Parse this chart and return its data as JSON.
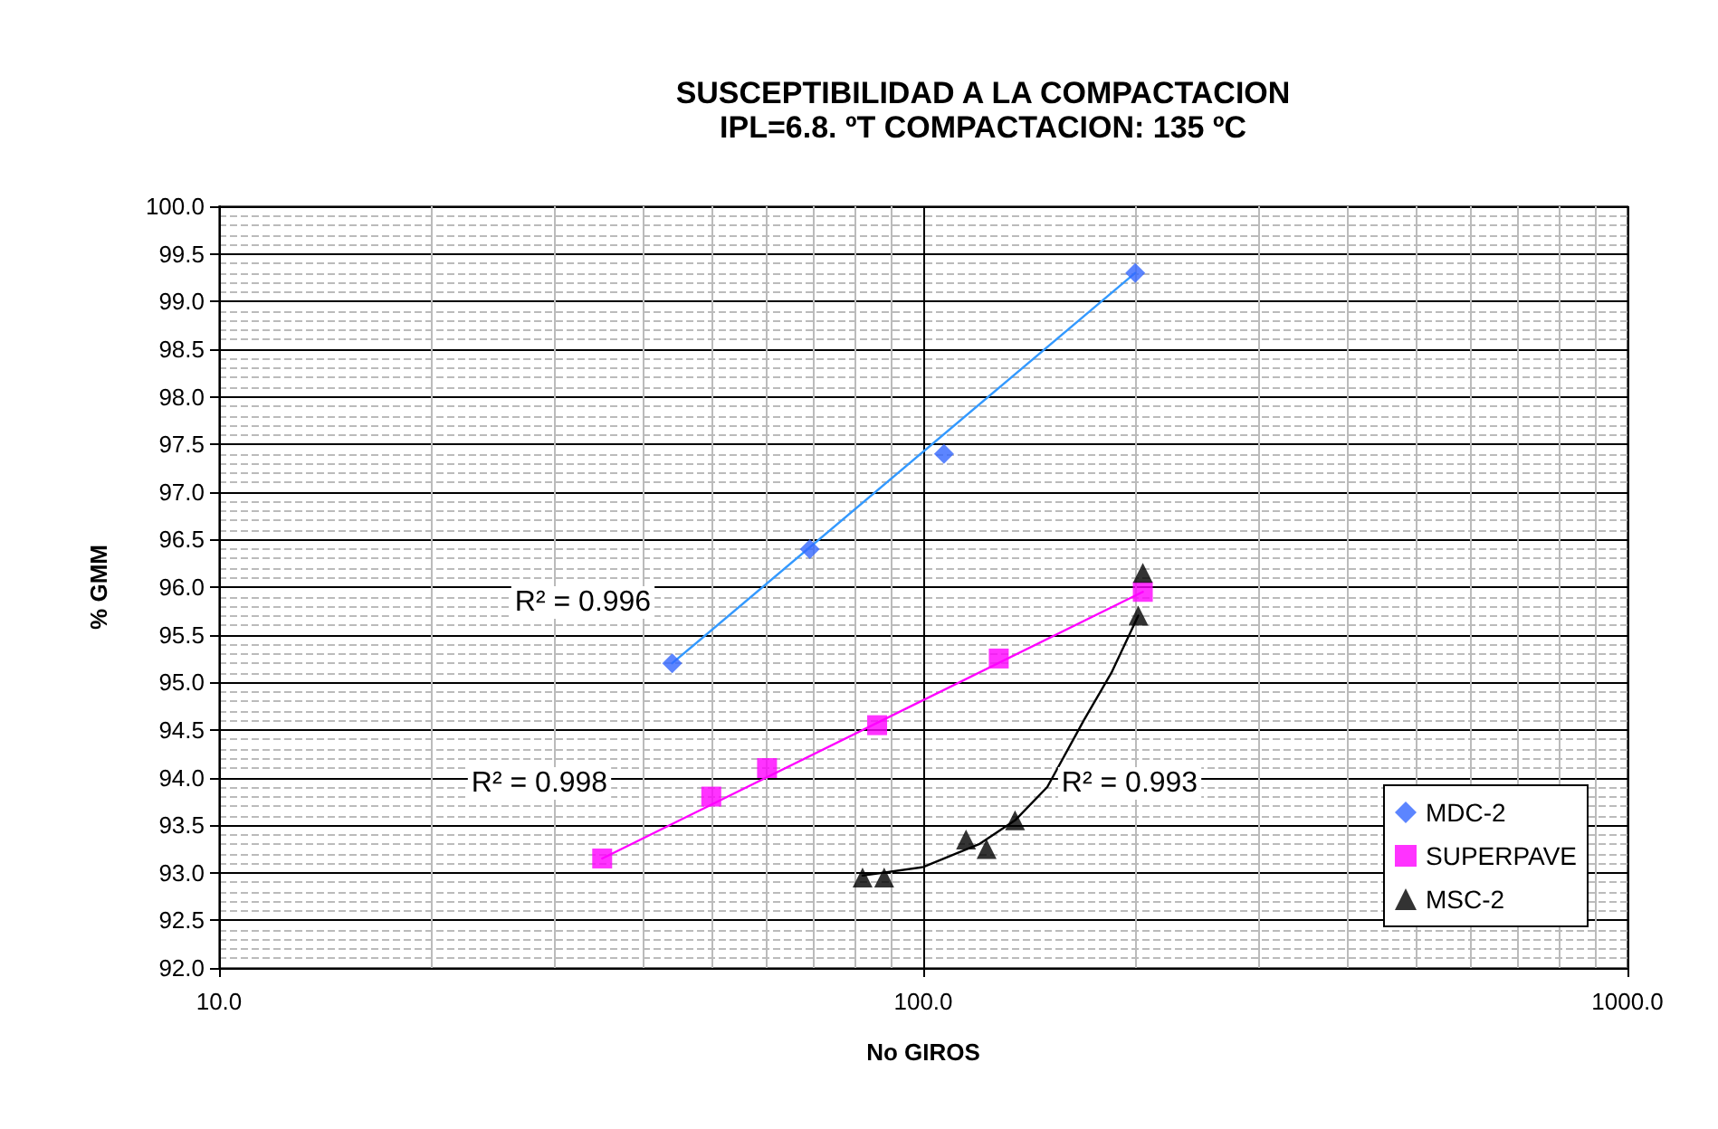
{
  "chart_data": {
    "type": "scatter",
    "title": "SUSCEPTIBILIDAD A LA COMPACTACION",
    "subtitle": "IPL=6.8. ºT COMPACTACION: 135 ºC",
    "xlabel": "No GIROS",
    "ylabel": "% GMM",
    "log": "x",
    "grid": true,
    "legend": "bottom right",
    "xlim": [
      10,
      1000
    ],
    "xticks": [
      {
        "value": 10,
        "label": "10.0"
      },
      {
        "value": 100,
        "label": "100.0"
      },
      {
        "value": 1000,
        "label": "1000.0"
      }
    ],
    "ylim": [
      92,
      100
    ],
    "yticks": [
      {
        "value": 92,
        "label": "92.0"
      },
      92.5,
      {
        "value": 93,
        "label": "93.0"
      },
      93.5,
      {
        "value": 94,
        "label": "94.0"
      },
      94.5,
      {
        "value": 95,
        "label": "95.0"
      },
      95.5,
      {
        "value": 96,
        "label": "96.0"
      },
      96.5,
      {
        "value": 97,
        "label": "97.0"
      },
      97.5,
      {
        "value": 98,
        "label": "98.0"
      },
      98.5,
      {
        "value": 99,
        "label": "99.0"
      },
      99.5,
      {
        "value": 100,
        "label": "100.0"
      }
    ],
    "series": [
      {
        "name": "MDC-2",
        "color": "#3366ff",
        "marker": "diamond",
        "x": [
          44,
          69,
          107,
          200
        ],
        "values": [
          95.2,
          96.4,
          97.4,
          99.3
        ]
      },
      {
        "name": "SUPERPAVE",
        "color": "#ff00ff",
        "marker": "square",
        "x": [
          35,
          50,
          60,
          86,
          128,
          205
        ],
        "values": [
          93.15,
          93.8,
          94.1,
          94.55,
          95.25,
          95.95
        ]
      },
      {
        "name": "MSC-2",
        "color": "#000000",
        "marker": "triangle",
        "x": [
          82,
          88,
          115,
          123,
          135,
          202,
          205
        ],
        "values": [
          92.95,
          92.95,
          93.35,
          93.25,
          93.55,
          95.7,
          96.15
        ]
      },
      {
        "type": "line",
        "color": "#3399ff",
        "marker": "none",
        "line_style": "solid",
        "x": [
          44,
          200
        ],
        "values": [
          95.2,
          99.3
        ]
      },
      {
        "type": "line",
        "color": "#ff00ff",
        "marker": "none",
        "line_style": "solid",
        "x": [
          35,
          205
        ],
        "values": [
          93.15,
          95.95
        ]
      },
      {
        "type": "line",
        "color": "#000000",
        "marker": "none",
        "line_style": "solid",
        "x": [
          82,
          100,
          120,
          135,
          150,
          169,
          185,
          202
        ],
        "values": [
          92.97,
          93.06,
          93.3,
          93.55,
          93.9,
          94.6,
          95.1,
          95.7
        ]
      }
    ],
    "annotations": [
      "R² = 0.996",
      "R² = 0.998",
      "R² = 0.993"
    ]
  }
}
